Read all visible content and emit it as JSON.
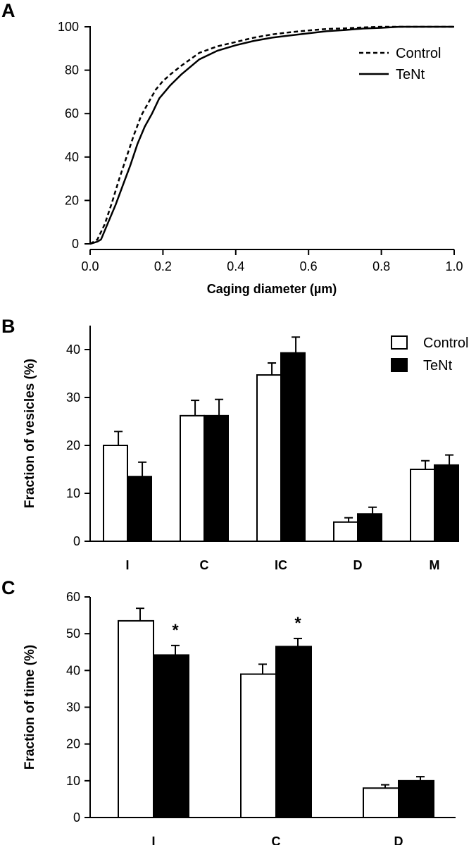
{
  "chart_data": [
    {
      "panel": "A",
      "type": "line",
      "xlabel": "Caging diameter (µm)",
      "ylabel": "",
      "xlim": [
        0,
        1.0
      ],
      "ylim": [
        0,
        100
      ],
      "xticks": [
        "0.0",
        "0.2",
        "0.4",
        "0.6",
        "0.8",
        "1.0"
      ],
      "yticks": [
        "0",
        "20",
        "40",
        "60",
        "80",
        "100"
      ],
      "legend_position": "top-right",
      "series": [
        {
          "name": "Control",
          "style": "dashed",
          "x": [
            0,
            0.02,
            0.04,
            0.06,
            0.08,
            0.1,
            0.12,
            0.14,
            0.16,
            0.18,
            0.2,
            0.22,
            0.25,
            0.3,
            0.35,
            0.4,
            0.45,
            0.5,
            0.55,
            0.6,
            0.65,
            0.7,
            0.75,
            0.8,
            0.85,
            0.9,
            1.0
          ],
          "values": [
            0,
            2,
            9,
            19,
            30,
            40,
            50,
            59,
            65,
            71,
            75,
            78,
            82,
            88,
            91,
            93,
            95,
            96.5,
            97.5,
            98.3,
            99,
            99.3,
            99.7,
            100,
            100,
            100,
            100
          ]
        },
        {
          "name": "TeNt",
          "style": "solid",
          "x": [
            0,
            0.02,
            0.03,
            0.05,
            0.07,
            0.09,
            0.11,
            0.13,
            0.15,
            0.17,
            0.19,
            0.21,
            0.22,
            0.25,
            0.3,
            0.35,
            0.4,
            0.45,
            0.5,
            0.55,
            0.6,
            0.65,
            0.7,
            0.75,
            0.8,
            0.85,
            0.9,
            1.0
          ],
          "values": [
            0,
            1,
            2,
            10,
            18,
            27,
            36,
            46,
            54,
            60,
            67,
            71,
            73,
            78,
            85,
            89,
            91.5,
            93.5,
            95,
            96,
            97,
            98,
            98.5,
            99.2,
            99.5,
            100,
            100,
            100
          ]
        }
      ]
    },
    {
      "panel": "B",
      "type": "bar",
      "ylabel": "Fraction of vesicles (%)",
      "ylim": [
        0,
        45
      ],
      "yticks": [
        "0",
        "10",
        "20",
        "30",
        "40"
      ],
      "categories": [
        "I",
        "C",
        "IC",
        "D",
        "M"
      ],
      "legend_position": "top-right",
      "series": [
        {
          "name": "Control",
          "fill": "#ffffff",
          "values": [
            20,
            26.2,
            34.7,
            4,
            15
          ],
          "errors": [
            2.9,
            3.2,
            2.5,
            0.9,
            1.8
          ]
        },
        {
          "name": "TeNt",
          "fill": "#000000",
          "values": [
            13.5,
            26.2,
            39.3,
            5.7,
            15.9
          ],
          "errors": [
            3,
            3.4,
            3.3,
            1.4,
            2.1
          ]
        }
      ]
    },
    {
      "panel": "C",
      "type": "bar",
      "ylabel": "Fraction of time (%)",
      "ylim": [
        0,
        60
      ],
      "yticks": [
        "0",
        "10",
        "20",
        "30",
        "40",
        "50",
        "60"
      ],
      "categories": [
        "I",
        "C",
        "D"
      ],
      "series": [
        {
          "name": "Control",
          "fill": "#ffffff",
          "values": [
            53.5,
            39,
            8
          ],
          "errors": [
            3.4,
            2.7,
            0.9
          ]
        },
        {
          "name": "TeNt",
          "fill": "#000000",
          "values": [
            44.2,
            46.5,
            10
          ],
          "errors": [
            2.6,
            2.2,
            1.1
          ]
        }
      ],
      "significance": [
        "*",
        "*",
        ""
      ]
    }
  ],
  "labels": {
    "panel_a": "A",
    "panel_b": "B",
    "panel_c": "C"
  }
}
